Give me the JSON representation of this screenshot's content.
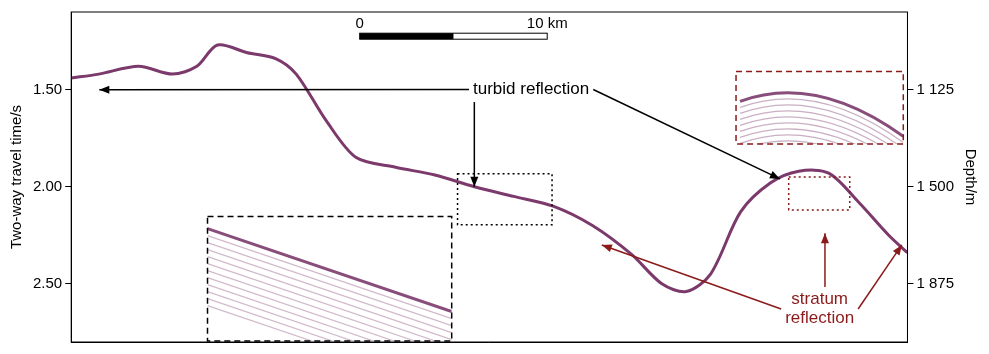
{
  "chart_data": {
    "type": "line",
    "y_title": "Two-way travel time/s",
    "y2_title": "Depth/m",
    "x": [
      0,
      1.47,
      3.6,
      5.4,
      6.7,
      7.8,
      9.4,
      10.9,
      12.0,
      13.6,
      15.2,
      17.3,
      19.4,
      21.5,
      23.6,
      25.7,
      27.8,
      29.9,
      31.5,
      32.8,
      34.1,
      35.7,
      37.3,
      38.8,
      40.4,
      42.0,
      43.6,
      44.6
    ],
    "values": [
      1.44,
      1.42,
      1.38,
      1.42,
      1.38,
      1.27,
      1.31,
      1.34,
      1.42,
      1.66,
      1.85,
      1.9,
      1.94,
      2.0,
      2.05,
      2.1,
      2.2,
      2.35,
      2.5,
      2.54,
      2.45,
      2.13,
      1.98,
      1.92,
      1.93,
      2.08,
      2.25,
      2.34
    ],
    "color": "#7b3a6b",
    "xlim": [
      0,
      44.6
    ],
    "ylim": [
      1.1,
      2.8
    ],
    "yticks": [
      {
        "value": 1.5,
        "label": "1.50"
      },
      {
        "value": 2.0,
        "label": "2.00"
      },
      {
        "value": 2.5,
        "label": "2.50"
      }
    ],
    "y2lim": [
      825,
      2100
    ],
    "y2ticks": [
      {
        "value": 1125,
        "label": "1 125"
      },
      {
        "value": 1500,
        "label": "1 500"
      },
      {
        "value": 1875,
        "label": "1 875"
      }
    ],
    "tick_labels": "y",
    "grid": false,
    "annotations": [
      {
        "text": "turbid reflection",
        "color": "#000000",
        "points": [
          [
            1.5,
            1.5
          ],
          [
            21.5,
            2.0
          ],
          [
            37.8,
            1.96
          ]
        ]
      },
      {
        "text": "stratum reflection",
        "color": "#8b1a1a",
        "points": [
          [
            28.3,
            2.3
          ],
          [
            40.2,
            2.24
          ],
          [
            44.3,
            2.3
          ]
        ]
      }
    ],
    "scale_bar": {
      "start_label": "0",
      "end_label": "10 km",
      "length": 10
    }
  }
}
